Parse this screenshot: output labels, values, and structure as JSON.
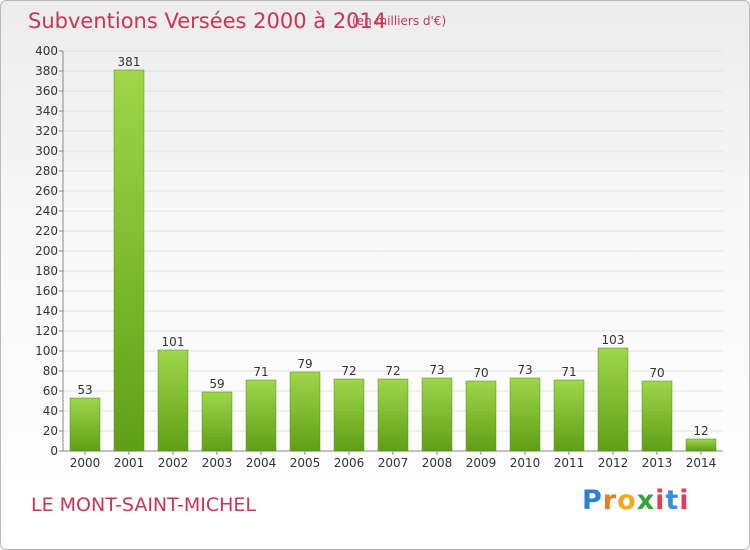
{
  "title": "Subventions Versées 2000 à 2014",
  "unit": "(en milliers d'€)",
  "commune": "LE MONT-SAINT-MICHEL",
  "logo": {
    "letters": [
      "P",
      "r",
      "o",
      "x",
      "i",
      "t",
      "i"
    ]
  },
  "colors": {
    "bar_top": "#9fd64a",
    "bar_bottom": "#5f9f16",
    "title": "#cc3355",
    "grid": "#e2e2e2"
  },
  "chart_data": {
    "type": "bar",
    "categories": [
      "2000",
      "2001",
      "2002",
      "2003",
      "2004",
      "2005",
      "2006",
      "2007",
      "2008",
      "2009",
      "2010",
      "2011",
      "2012",
      "2013",
      "2014"
    ],
    "values": [
      53,
      381,
      101,
      59,
      71,
      79,
      72,
      72,
      73,
      70,
      73,
      71,
      103,
      70,
      12
    ],
    "ylim": [
      0,
      400
    ],
    "yticks": [
      0,
      20,
      40,
      60,
      80,
      100,
      120,
      140,
      160,
      180,
      200,
      220,
      240,
      260,
      280,
      300,
      320,
      340,
      360,
      380,
      400
    ],
    "grid": true,
    "xlabel": "",
    "ylabel": ""
  }
}
